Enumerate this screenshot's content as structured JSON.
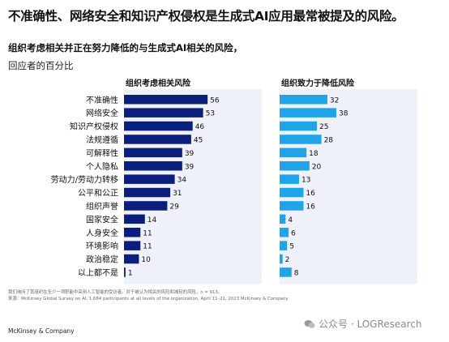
{
  "headline": "不准确性、网络安全和知识产权侵权是生成式AI应用最常被提及的风险。",
  "subtitle": "组织考虑相关并正在努力降低的与生成式AI相关的风险，",
  "unit": "回应者的百分比",
  "footnote": {
    "line1": "我们询问了其组织在至少一项职能中采用人工智能的受访者。对于被认为相关的风险和减轻的风险，n = 913。",
    "line2": "来源：McKinsey Global Survey on AI, 1,684 participants at all levels of the organization, April 11–21, 2023 McKinsey & Company"
  },
  "brand": "McKinsey & Company",
  "watermark": "公众号 · LOGResearch",
  "colors": {
    "considered": "#0b1f7a",
    "mitigating": "#1fa4e8",
    "background_panel": "#eef1f7"
  },
  "chart_data": {
    "type": "bar",
    "orientation": "horizontal",
    "categories": [
      "不准确性",
      "网络安全",
      "知识产权侵权",
      "法规遵循",
      "可解释性",
      "个人隐私",
      "劳动力/劳动力转移",
      "公平和公正",
      "组织声誉",
      "国家安全",
      "人身安全",
      "环境影响",
      "政治稳定",
      "以上都不是"
    ],
    "series": [
      {
        "name": "组织考虑相关风险",
        "values": [
          56,
          53,
          46,
          45,
          39,
          39,
          34,
          31,
          29,
          14,
          11,
          11,
          10,
          1
        ]
      },
      {
        "name": "组织致力于降低风险",
        "values": [
          32,
          38,
          25,
          28,
          18,
          20,
          13,
          16,
          16,
          4,
          6,
          5,
          2,
          8
        ]
      }
    ],
    "xlim": [
      0,
      60
    ],
    "grid": false,
    "legend": "column-headers"
  }
}
